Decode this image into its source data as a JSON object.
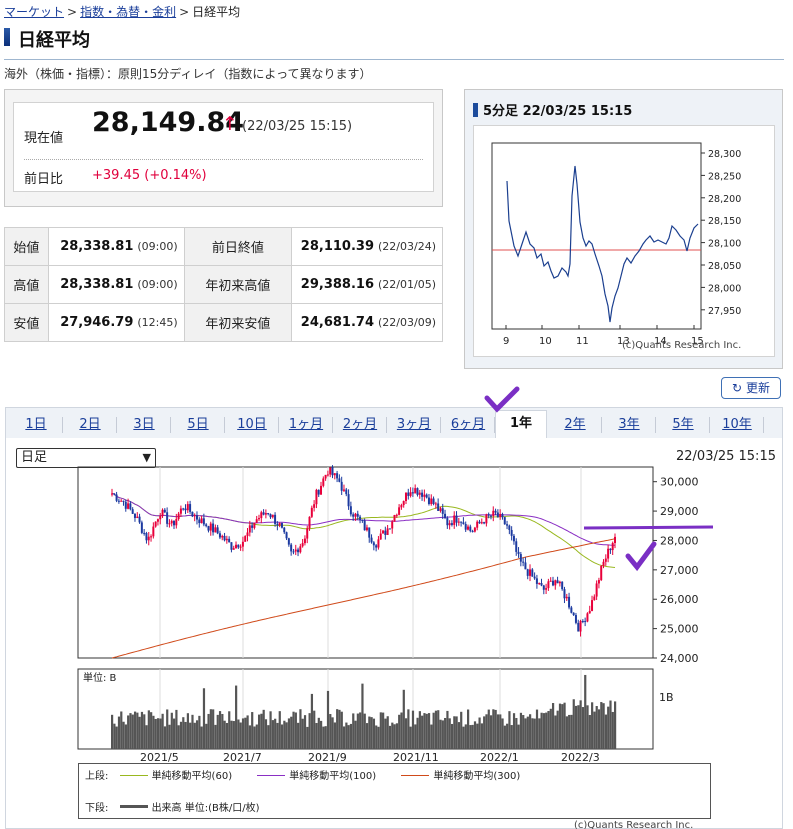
{
  "breadcrumb": [
    {
      "label": "マーケット",
      "link": true
    },
    {
      "label": "指数・為替・金利",
      "link": true
    },
    {
      "label": "日経平均",
      "link": false
    }
  ],
  "page_title": "日経平均",
  "note": "海外（株価・指標）：原則15分ディレイ（指数によって異なります）",
  "price": {
    "current_label": "現在値",
    "current_value": "28,149.84",
    "arrow": "↑",
    "timestamp": "(22/03/25 15:15)",
    "change_label": "前日比",
    "change_value": "+39.45 (+0.14%)"
  },
  "stats": [
    {
      "label": "始値",
      "value": "28,338.81",
      "time": "(09:00)",
      "label2": "前日終値",
      "value2": "28,110.39",
      "time2": "(22/03/24)"
    },
    {
      "label": "高値",
      "value": "28,338.81",
      "time": "(09:00)",
      "label2": "年初来高値",
      "value2": "29,388.16",
      "time2": "(22/01/05)"
    },
    {
      "label": "安値",
      "value": "27,946.79",
      "time": "(12:45)",
      "label2": "年初来安値",
      "value2": "24,681.74",
      "time2": "(22/03/09)"
    }
  ],
  "intraday": {
    "title": "5分足 22/03/25 15:15",
    "y_ticks": [
      "28,300",
      "28,250",
      "28,200",
      "28,150",
      "28,100",
      "28,050",
      "28,000",
      "27,950"
    ],
    "x_ticks": [
      "9",
      "10",
      "11",
      "13",
      "14",
      "15"
    ],
    "credit": "(c)Quants Research Inc.",
    "colors": {
      "line": "#1b3f8f",
      "prev_close": "#e05050"
    }
  },
  "refresh_label": "更新",
  "tabs": [
    "1日",
    "2日",
    "3日",
    "5日",
    "10日",
    "1ヶ月",
    "2ヶ月",
    "3ヶ月",
    "6ヶ月",
    "1年",
    "2年",
    "3年",
    "5年",
    "10年"
  ],
  "active_tab": "1年",
  "period_select": "日足",
  "chart_timestamp": "22/03/25 15:15",
  "chart_data": {
    "type": "candlestick",
    "y_ticks": [
      "30,000",
      "29,000",
      "28,000",
      "27,000",
      "26,000",
      "25,000",
      "24,000"
    ],
    "ylim": [
      24000,
      30500
    ],
    "x_labels": [
      "2021/5",
      "2021/7",
      "2021/9",
      "2021/11",
      "2022/1",
      "2022/3"
    ],
    "close_approx": [
      29600,
      29300,
      28800,
      28000,
      29000,
      28500,
      29200,
      28800,
      28500,
      28200,
      27800,
      28000,
      28700,
      29000,
      28500,
      27500,
      28000,
      29500,
      30400,
      30000,
      29000,
      28500,
      27900,
      28400,
      29200,
      29800,
      29600,
      29200,
      28600,
      28800,
      28300,
      28700,
      28900,
      28500,
      27300,
      26800,
      26300,
      26700,
      26000,
      25000,
      25800,
      27200,
      28150
    ],
    "ma_series": [
      {
        "name": "単純移動平均(60)",
        "color": "#99b81f"
      },
      {
        "name": "単純移動平均(100)",
        "color": "#8a2fc4"
      },
      {
        "name": "単純移動平均(300)",
        "color": "#d04a1a"
      }
    ],
    "volume_unit_label": "単位: B",
    "volume_tick": "1B",
    "colors": {
      "up": "#e8003a",
      "down": "#1c3aa0",
      "volume": "#555555"
    }
  },
  "legend": {
    "upper_label": "上段:",
    "lower_label": "下段:",
    "lower_item": "出来高 単位:(B株/口/枚)"
  },
  "credit_bottom": "(c)Quants Research Inc."
}
